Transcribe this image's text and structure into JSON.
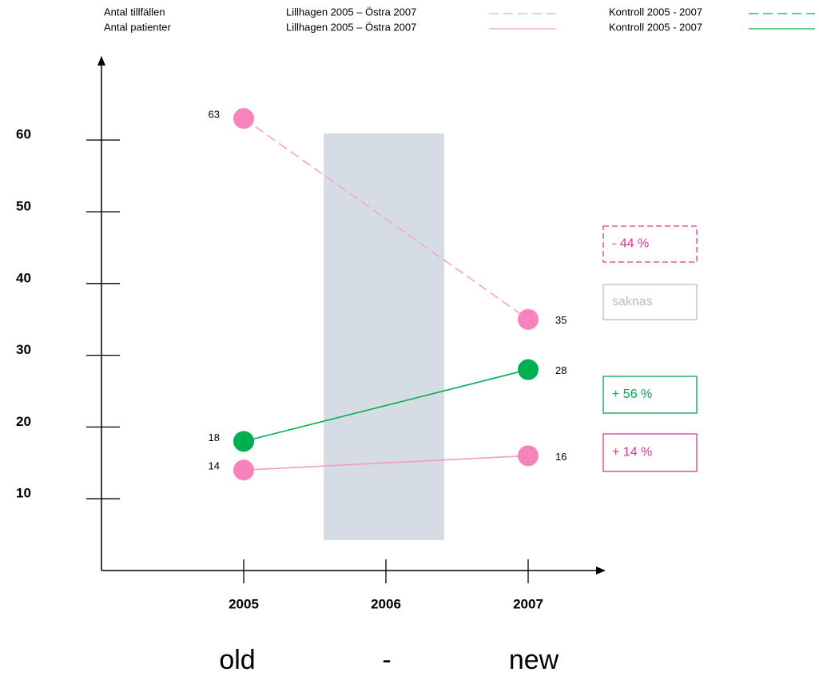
{
  "chart_data": {
    "type": "line",
    "series_groups": [
      {
        "label": "Antal tillfällen",
        "series": [
          {
            "name": "Lillhagen 2005 – Östra 2007",
            "color": "#f7a3c9",
            "point_color": "#f783bd",
            "dash": true,
            "x": [
              2005,
              2007
            ],
            "values": [
              63,
              35
            ]
          },
          {
            "name": "Kontroll 2005 - 2007",
            "color": "#00b050",
            "point_color": "#00b050",
            "dash": true,
            "x": [],
            "values": []
          }
        ]
      },
      {
        "label": "Antal patienter",
        "series": [
          {
            "name": "Lillhagen 2005 – Östra 2007",
            "color": "#f29cc5",
            "point_color": "#f783bd",
            "dash": false,
            "x": [
              2005,
              2007
            ],
            "values": [
              14,
              16
            ]
          },
          {
            "name": "Kontroll 2005 - 2007",
            "color": "#00b050",
            "point_color": "#00b050",
            "dash": false,
            "x": [
              2005,
              2007
            ],
            "values": [
              18,
              28
            ]
          }
        ]
      }
    ],
    "xlim": [
      2004,
      2007.5
    ],
    "xticks": [
      2005,
      2006,
      2007
    ],
    "ylim": [
      0,
      70
    ],
    "yticks": [
      10,
      20,
      30,
      40,
      50,
      60
    ],
    "annotations": [
      {
        "text": "- 44 %",
        "color": "#e8338a",
        "dash": true
      },
      {
        "text": "saknas",
        "color": "#b8bcc2",
        "dash": false
      },
      {
        "text": "+ 56 %",
        "color": "#00a84f",
        "dash": false
      },
      {
        "text": "+ 14 %",
        "color": "#e8338a",
        "dash": false
      }
    ],
    "footer": [
      "old",
      "-",
      "new"
    ]
  }
}
